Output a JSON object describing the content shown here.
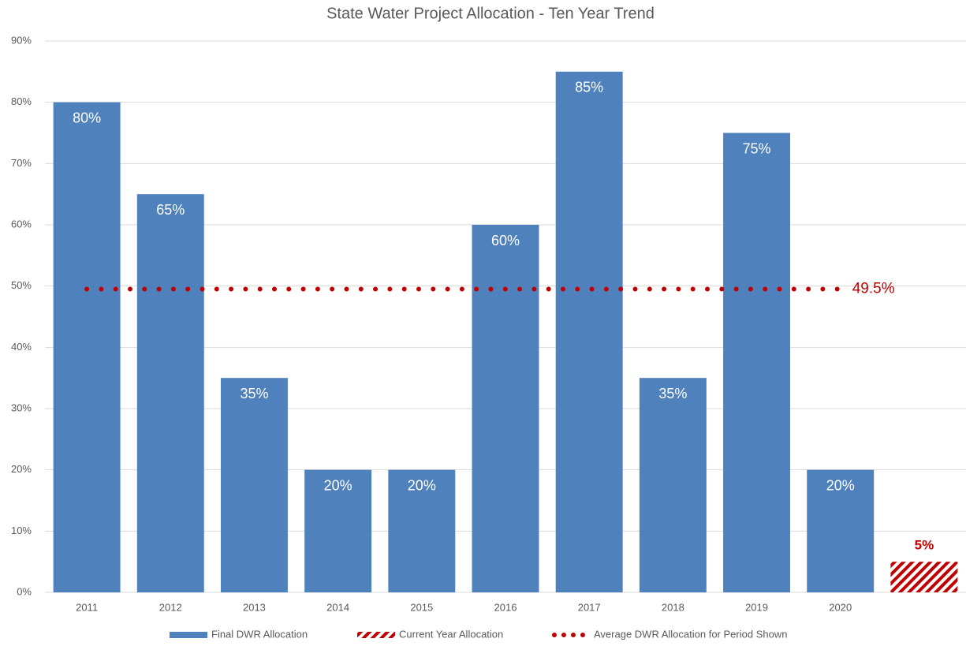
{
  "chart_data": {
    "type": "bar",
    "title": "State Water Project Allocation - Ten Year Trend",
    "categories": [
      "2011",
      "2012",
      "2013",
      "2014",
      "2015",
      "2016",
      "2017",
      "2018",
      "2019",
      "2020",
      null
    ],
    "series": [
      {
        "name": "Final DWR Allocation",
        "color": "#4f81bd",
        "kind": "bar",
        "values": [
          80,
          65,
          35,
          20,
          20,
          60,
          85,
          35,
          75,
          20,
          null
        ],
        "value_labels": [
          "80%",
          "65%",
          "35%",
          "20%",
          "20%",
          "60%",
          "85%",
          "35%",
          "75%",
          "20%",
          null
        ]
      },
      {
        "name": "Current Year Allocation",
        "color": "#c00000",
        "kind": "hatched-bar",
        "values": [
          null,
          null,
          null,
          null,
          null,
          null,
          null,
          null,
          null,
          null,
          5
        ],
        "value_labels": [
          null,
          null,
          null,
          null,
          null,
          null,
          null,
          null,
          null,
          null,
          "5%"
        ]
      },
      {
        "name": "Average DWR Allocation for Period Shown",
        "color": "#c00000",
        "kind": "dotted-line",
        "values": [
          49.5,
          49.5,
          49.5,
          49.5,
          49.5,
          49.5,
          49.5,
          49.5,
          49.5,
          49.5,
          null
        ],
        "value_labels": [
          null,
          null,
          null,
          null,
          null,
          null,
          null,
          null,
          null,
          "49.5%",
          null
        ]
      }
    ],
    "ylim": [
      0,
      90
    ],
    "yticks": [
      {
        "value": 0,
        "label": "0%"
      },
      {
        "value": 10,
        "label": "10%"
      },
      {
        "value": 20,
        "label": "20%"
      },
      {
        "value": 30,
        "label": "30%"
      },
      {
        "value": 40,
        "label": "40%"
      },
      {
        "value": 50,
        "label": "50%"
      },
      {
        "value": 60,
        "label": "60%"
      },
      {
        "value": 70,
        "label": "70%"
      },
      {
        "value": 80,
        "label": "80%"
      },
      {
        "value": 90,
        "label": "90%"
      }
    ],
    "grid": true,
    "legend": "bottom"
  }
}
